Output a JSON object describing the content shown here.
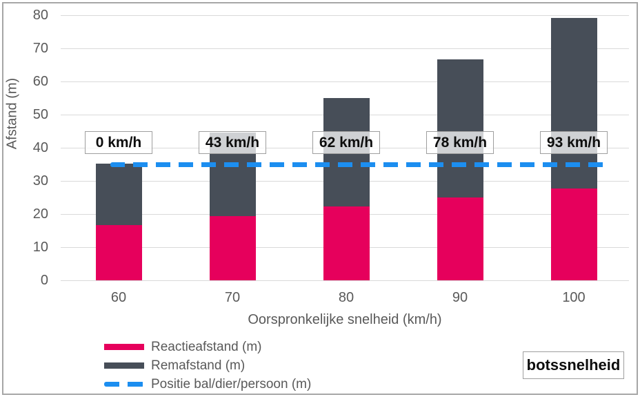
{
  "annotations": {
    "corner_box_label": "botssnelheid"
  },
  "colors": {
    "reaction_pink": "#E6005C",
    "braking_gray": "#474E58",
    "position_blue": "#1C8EF0",
    "gridline": "#d9d9d9",
    "axis_text": "#595959",
    "box_border": "#9e9e9e"
  },
  "chart_data": {
    "type": "bar",
    "stacked": true,
    "title": "",
    "xlabel": "Oorspronkelijke snelheid (km/h)",
    "ylabel": "Afstand (m)",
    "categories": [
      60,
      70,
      80,
      90,
      100
    ],
    "series": [
      {
        "name": "Reactieafstand (m)",
        "color": "#E6005C",
        "values": [
          16.7,
          19.4,
          22.2,
          25.0,
          27.8
        ]
      },
      {
        "name": "Remafstand (m)",
        "color": "#474E58",
        "values": [
          18.5,
          25.2,
          32.9,
          41.7,
          51.4
        ]
      }
    ],
    "totals": [
      35.2,
      44.6,
      55.1,
      66.7,
      79.2
    ],
    "line_series": {
      "name": "Positie bal/dier/persoon (m)",
      "value": 35,
      "style": "dashed",
      "color": "#1C8EF0"
    },
    "bar_labels": [
      "0 km/h",
      "43 km/h",
      "62 km/h",
      "78 km/h",
      "93 km/h"
    ],
    "ylim": [
      0,
      80
    ],
    "ytick_step": 10,
    "grid": true,
    "legend_position": "bottom-left"
  }
}
